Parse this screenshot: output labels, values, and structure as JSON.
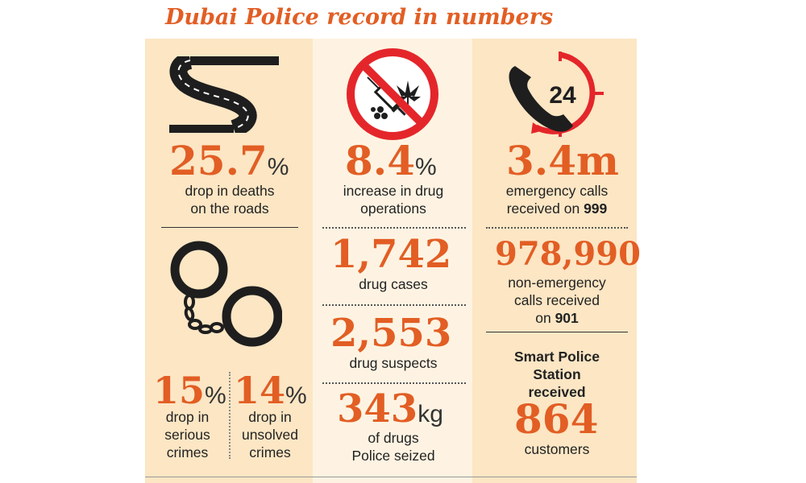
{
  "title": "Dubai Police record in numbers",
  "colors": {
    "accent": "#e25e24",
    "panel": "#fce6c4",
    "mid_panel": "#fef3e2",
    "forbidden_red": "#e4262b",
    "text": "#222222"
  },
  "icons": [
    "winding-road-icon",
    "no-drugs-icon",
    "phone-24-icon",
    "handcuffs-icon"
  ],
  "roads": {
    "value": "25.7",
    "unit": "%",
    "desc1": "drop in deaths",
    "desc2": "on the roads"
  },
  "crimes": [
    {
      "value": "15",
      "unit": "%",
      "desc1": "drop in",
      "desc2": "serious",
      "desc3": "crimes"
    },
    {
      "value": "14",
      "unit": "%",
      "desc1": "drop in",
      "desc2": "unsolved",
      "desc3": "crimes"
    }
  ],
  "drugs_ops": {
    "value": "8.4",
    "unit": "%",
    "desc1": "increase in drug",
    "desc2": "operations"
  },
  "drug_cases": {
    "value": "1,742",
    "desc": "drug cases"
  },
  "drug_suspects": {
    "value": "2,553",
    "desc": "drug suspects"
  },
  "drugs_seized": {
    "value": "343",
    "unit": "kg",
    "desc1": "of drugs",
    "desc2": "Police seized"
  },
  "phone_badge": "24",
  "emergency": {
    "value": "3.4m",
    "desc1": "emergency calls",
    "desc2": "received on",
    "number": "999"
  },
  "non_emergency": {
    "value": "978,990",
    "desc1": "non-emergency",
    "desc2": "calls received",
    "desc3": "on",
    "number": "901"
  },
  "smart": {
    "head1": "Smart Police",
    "head2": "Station",
    "head3": "received",
    "value": "864",
    "desc": "customers"
  }
}
